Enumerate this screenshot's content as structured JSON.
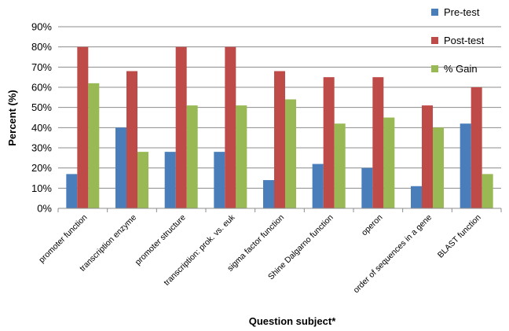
{
  "chart_data": {
    "type": "bar",
    "categories": [
      "promoter function",
      "transcription enzyme",
      "promoter structure",
      "transcription: prok. vs. euk",
      "sigma factor function",
      "Shine Dalgarno function",
      "operon",
      "order of sequences in a gene",
      "BLAST function"
    ],
    "series": [
      {
        "name": "Pre-test",
        "color": "#4a7ebb",
        "values": [
          17,
          40,
          28,
          28,
          14,
          22,
          20,
          11,
          42
        ]
      },
      {
        "name": "Post-test",
        "color": "#be4b48",
        "values": [
          80,
          68,
          80,
          80,
          68,
          65,
          65,
          51,
          60
        ]
      },
      {
        "name": "% Gain",
        "color": "#98b954",
        "values": [
          62,
          28,
          51,
          51,
          54,
          42,
          45,
          40,
          17
        ]
      }
    ],
    "xlabel": "Question subject*",
    "ylabel": "Percent (%)",
    "ylim": [
      0,
      90
    ],
    "yticks": [
      "0%",
      "10%",
      "20%",
      "30%",
      "40%",
      "50%",
      "60%",
      "70%",
      "80%",
      "90%"
    ],
    "grid": true,
    "legend_position": "top-right"
  }
}
